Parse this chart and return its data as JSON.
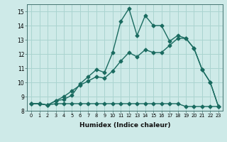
{
  "xlabel": "Humidex (Indice chaleur)",
  "background_color": "#ceeae8",
  "grid_color": "#aad4d0",
  "line_color": "#1a6b60",
  "xlim": [
    -0.5,
    23.5
  ],
  "ylim": [
    8,
    15.5
  ],
  "xticks": [
    0,
    1,
    2,
    3,
    4,
    5,
    6,
    7,
    8,
    9,
    10,
    11,
    12,
    13,
    14,
    15,
    16,
    17,
    18,
    19,
    20,
    21,
    22,
    23
  ],
  "yticks": [
    8,
    9,
    10,
    11,
    12,
    13,
    14,
    15
  ],
  "series1_x": [
    0,
    1,
    2,
    3,
    4,
    5,
    6,
    7,
    8,
    9,
    10,
    11,
    12,
    13,
    14,
    15,
    16,
    17,
    18,
    19,
    20,
    21,
    22,
    23
  ],
  "series1_y": [
    8.5,
    8.5,
    8.4,
    8.5,
    8.5,
    8.5,
    8.5,
    8.5,
    8.5,
    8.5,
    8.5,
    8.5,
    8.5,
    8.5,
    8.5,
    8.5,
    8.5,
    8.5,
    8.5,
    8.3,
    8.3,
    8.3,
    8.3,
    8.3
  ],
  "series2_x": [
    0,
    1,
    2,
    3,
    4,
    5,
    6,
    7,
    8,
    9,
    10,
    11,
    12,
    13,
    14,
    15,
    16,
    17,
    18,
    19,
    20,
    21,
    22,
    23
  ],
  "series2_y": [
    8.5,
    8.5,
    8.4,
    8.7,
    9.0,
    9.4,
    9.8,
    10.1,
    10.4,
    10.3,
    10.8,
    11.5,
    12.1,
    11.8,
    12.3,
    12.1,
    12.1,
    12.6,
    13.1,
    13.1,
    12.4,
    10.9,
    10.0,
    8.3
  ],
  "series3_x": [
    0,
    1,
    2,
    3,
    4,
    5,
    6,
    7,
    8,
    9,
    10,
    11,
    12,
    13,
    14,
    15,
    16,
    17,
    18,
    19,
    20,
    21,
    22,
    23
  ],
  "series3_y": [
    8.5,
    8.5,
    8.4,
    8.7,
    8.8,
    9.1,
    9.9,
    10.4,
    10.9,
    10.7,
    12.1,
    14.3,
    15.2,
    13.3,
    14.7,
    14.0,
    14.0,
    12.9,
    13.3,
    13.1,
    12.4,
    10.9,
    10.0,
    8.3
  ],
  "markersize": 2.5,
  "linewidth": 1.0
}
